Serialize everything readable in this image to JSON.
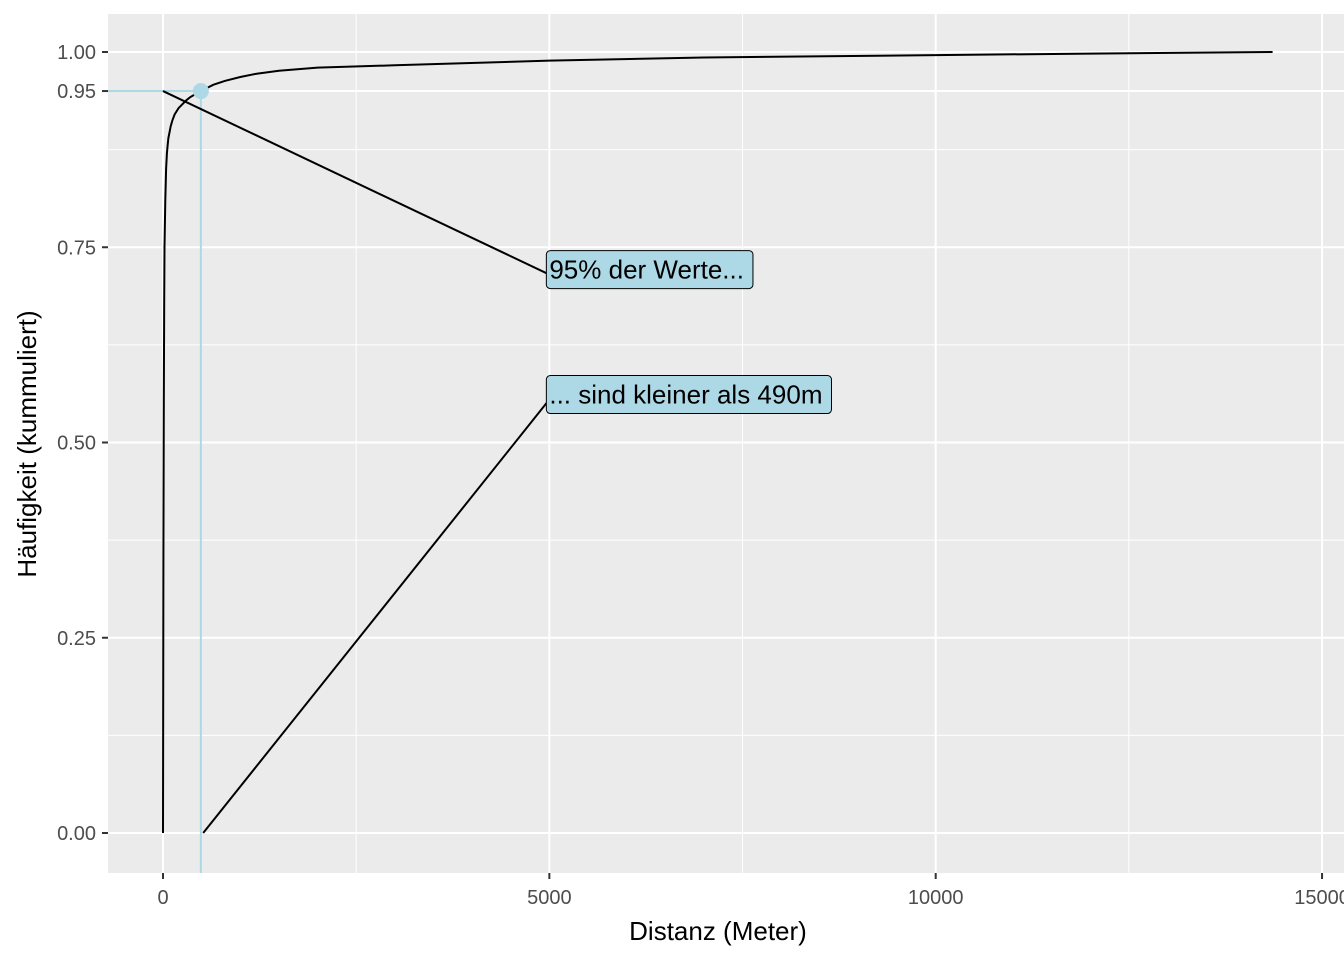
{
  "chart_data": {
    "type": "line",
    "xlabel": "Distanz (Meter)",
    "ylabel": "Häufigkeit (kummuliert)",
    "xlim": [
      -700,
      15000
    ],
    "ylim": [
      -0.05,
      1.05
    ],
    "x_ticks": [
      0,
      5000,
      10000,
      15000
    ],
    "x_tick_labels": [
      "0",
      "5000",
      "10000",
      "15000"
    ],
    "y_ticks": [
      0,
      0.25,
      0.5,
      0.75,
      0.95,
      1.0
    ],
    "y_tick_labels": [
      "0.00",
      "0.25",
      "0.50",
      "0.75",
      "0.95",
      "1.00"
    ],
    "grid": true,
    "series": [
      {
        "x": [
          0,
          5,
          10,
          15,
          20,
          30,
          40,
          50,
          60,
          70,
          80,
          100,
          120,
          150,
          200,
          250,
          300,
          350,
          400,
          450,
          490,
          550,
          650,
          800,
          1000,
          1200,
          1500,
          2000,
          3000,
          5000,
          7000,
          10000,
          12000,
          14360
        ],
        "y": [
          0.0,
          0.35,
          0.55,
          0.68,
          0.75,
          0.81,
          0.85,
          0.87,
          0.88,
          0.89,
          0.895,
          0.905,
          0.912,
          0.92,
          0.928,
          0.933,
          0.938,
          0.942,
          0.945,
          0.948,
          0.95,
          0.953,
          0.958,
          0.963,
          0.968,
          0.972,
          0.976,
          0.98,
          0.983,
          0.989,
          0.993,
          0.996,
          0.998,
          1.0
        ]
      }
    ],
    "highlight": {
      "x": 490,
      "y": 0.95,
      "color": "#add8e6"
    },
    "annotations": [
      {
        "text": "95% der Werte...",
        "x": 5000,
        "y": 0.715,
        "point_x": 0,
        "point_y": 0.95,
        "fill": "#add8e6"
      },
      {
        "text": "... sind kleiner als 490m",
        "x": 5000,
        "y": 0.555,
        "point_x": 520,
        "point_y": 0.0,
        "fill": "#add8e6"
      }
    ]
  }
}
